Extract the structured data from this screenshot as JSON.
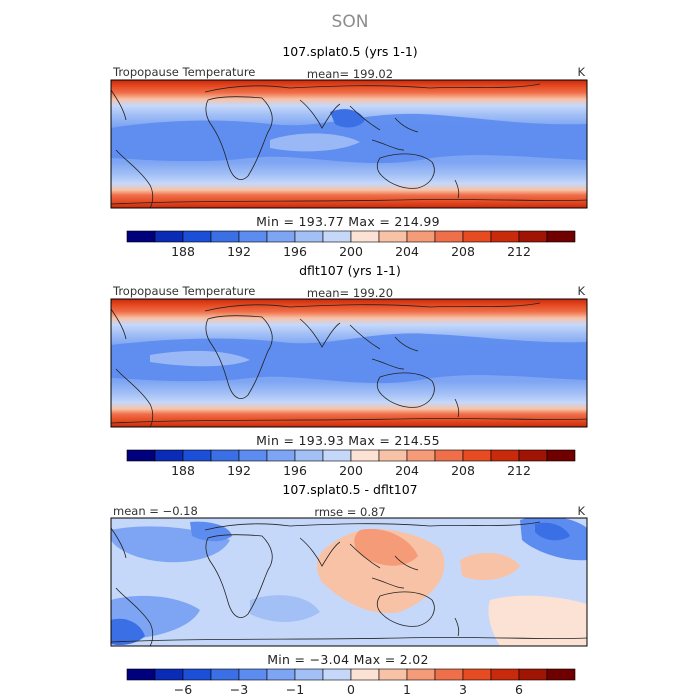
{
  "figure": {
    "season_title": "SON",
    "panels": [
      {
        "id": "p1",
        "title": "107.splat0.5 (yrs 1-1)",
        "left_label": "Tropopause Temperature",
        "center_label": "mean= 199.02",
        "right_label": "K",
        "minmax_label": "Min = 193.77 Max = 214.99",
        "colorbar_ticks": [
          "188",
          "192",
          "196",
          "200",
          "204",
          "208",
          "212"
        ]
      },
      {
        "id": "p2",
        "title": "dflt107 (yrs 1-1)",
        "left_label": "Tropopause Temperature",
        "center_label": "mean= 199.20",
        "right_label": "K",
        "minmax_label": "Min = 193.93 Max = 214.55",
        "colorbar_ticks": [
          "188",
          "192",
          "196",
          "200",
          "204",
          "208",
          "212"
        ]
      },
      {
        "id": "p3",
        "title": "107.splat0.5 - dflt107",
        "left_label": "mean = −0.18",
        "center_label": "rmse = 0.87",
        "right_label": "K",
        "minmax_label": "Min = −3.04 Max = 2.02",
        "colorbar_ticks": [
          "−6",
          "−3",
          "−1",
          "0",
          "1",
          "3",
          "6"
        ]
      }
    ]
  },
  "chart_data": [
    {
      "type": "heatmap",
      "title": "107.splat0.5 (yrs 1-1)",
      "variable": "Tropopause Temperature",
      "units": "K",
      "mean": 199.02,
      "min": 193.77,
      "max": 214.99,
      "colorbar_ticks": [
        188,
        192,
        196,
        200,
        204,
        208,
        212
      ],
      "levels": [
        186,
        188,
        190,
        192,
        194,
        196,
        198,
        200,
        202,
        204,
        206,
        208,
        210,
        212,
        214
      ],
      "colors": [
        "#00007d",
        "#0a2bb5",
        "#1c4fd8",
        "#3b6fe6",
        "#5c8cf0",
        "#7ea5f3",
        "#a3c0f6",
        "#c6d8fa",
        "#fbe2d4",
        "#f8c2a6",
        "#f59b78",
        "#ef6f4a",
        "#e64b22",
        "#c92a0c",
        "#a01404",
        "#700000"
      ]
    },
    {
      "type": "heatmap",
      "title": "dflt107 (yrs 1-1)",
      "variable": "Tropopause Temperature",
      "units": "K",
      "mean": 199.2,
      "min": 193.93,
      "max": 214.55,
      "colorbar_ticks": [
        188,
        192,
        196,
        200,
        204,
        208,
        212
      ],
      "levels": [
        186,
        188,
        190,
        192,
        194,
        196,
        198,
        200,
        202,
        204,
        206,
        208,
        210,
        212,
        214
      ],
      "colors": [
        "#00007d",
        "#0a2bb5",
        "#1c4fd8",
        "#3b6fe6",
        "#5c8cf0",
        "#7ea5f3",
        "#a3c0f6",
        "#c6d8fa",
        "#fbe2d4",
        "#f8c2a6",
        "#f59b78",
        "#ef6f4a",
        "#e64b22",
        "#c92a0c",
        "#a01404",
        "#700000"
      ]
    },
    {
      "type": "heatmap",
      "title": "107.splat0.5 - dflt107",
      "units": "K",
      "mean": -0.18,
      "rmse": 0.87,
      "min": -3.04,
      "max": 2.02,
      "colorbar_ticks": [
        -6,
        -3,
        -1,
        0,
        1,
        3,
        6
      ],
      "levels": [
        -8,
        -6,
        -4,
        -3,
        -2,
        -1,
        -0.5,
        0,
        0.5,
        1,
        2,
        3,
        4,
        6,
        8
      ],
      "colors": [
        "#00007d",
        "#0a2bb5",
        "#1c4fd8",
        "#3b6fe6",
        "#5c8cf0",
        "#7ea5f3",
        "#a3c0f6",
        "#c6d8fa",
        "#fbe2d4",
        "#f8c2a6",
        "#f59b78",
        "#ef6f4a",
        "#e64b22",
        "#c92a0c",
        "#a01404",
        "#700000"
      ]
    }
  ]
}
